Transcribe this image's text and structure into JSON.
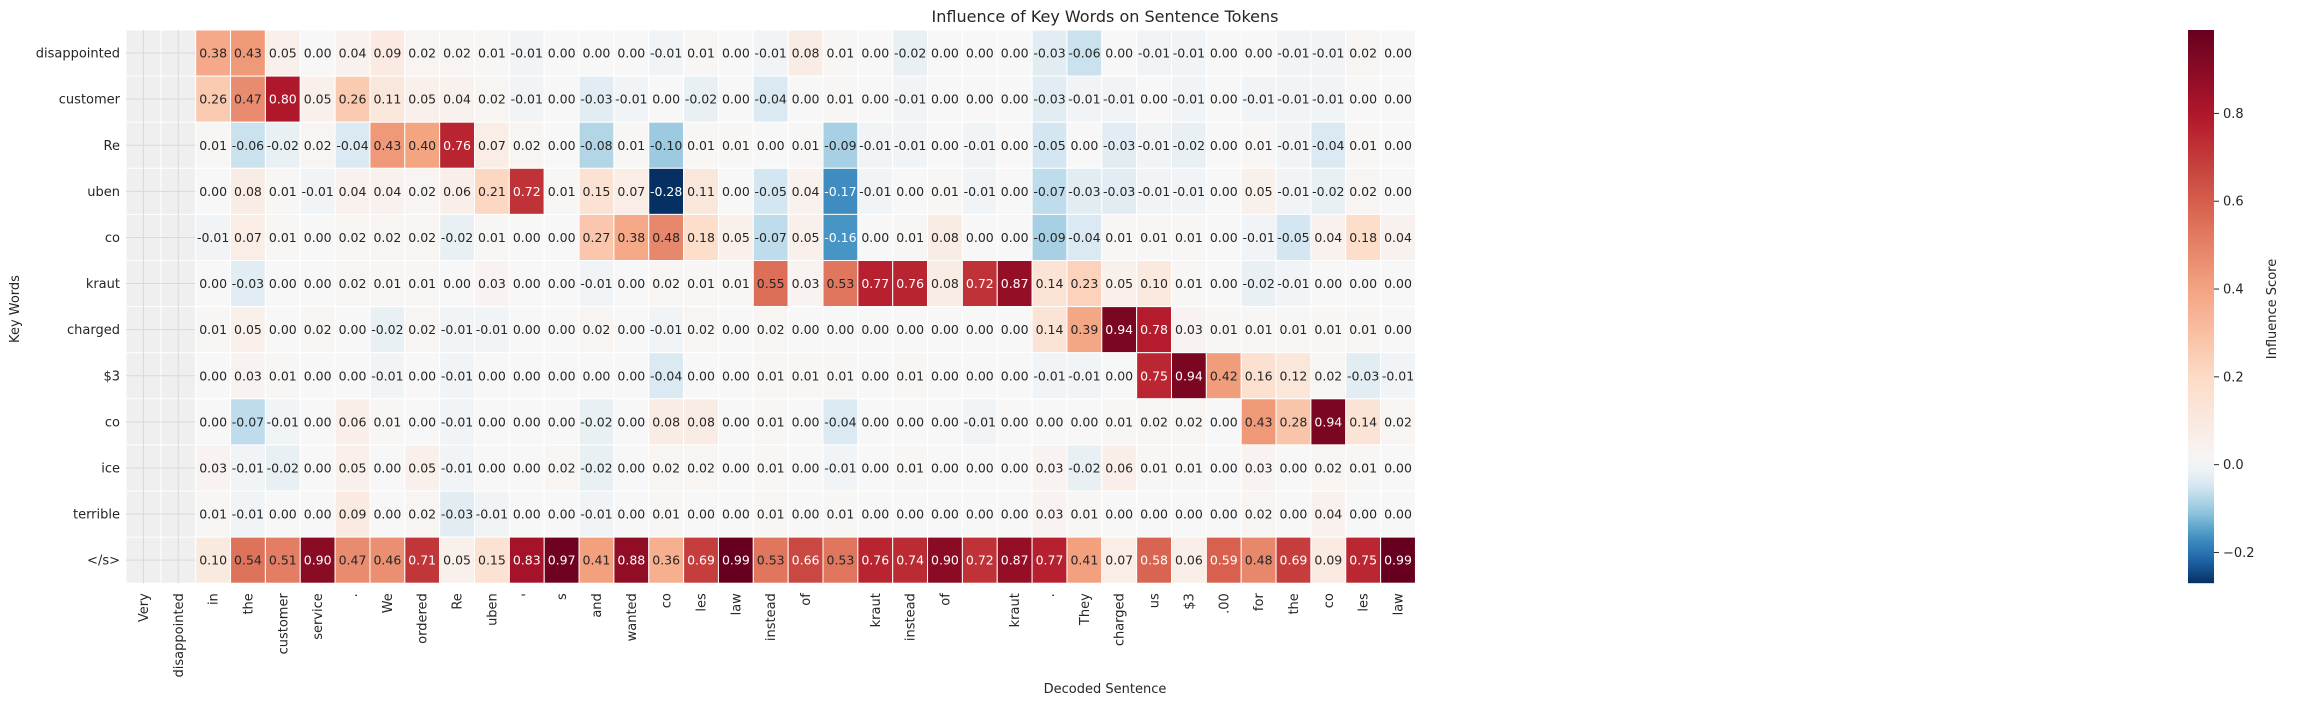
{
  "chart_data": {
    "type": "heatmap",
    "title": "Influence of Key Words on Sentence Tokens",
    "xlabel": "Decoded Sentence",
    "ylabel": "Key Words",
    "colorbar_label": "Influence Score",
    "colorbar_ticks": [
      "−0.2",
      "0.0",
      "0.2",
      "0.4",
      "0.6",
      "0.8"
    ],
    "colorbar_range": [
      -0.27,
      0.99
    ],
    "colormap": "RdBu_r",
    "colors": {
      "negative_max": "#2f6db0",
      "neutral": "#f7f7f7",
      "positive_max": "#67001f",
      "missing": "#efefef"
    },
    "rows": [
      "disappointed",
      "customer",
      "Re",
      "uben",
      "co",
      "kraut",
      "charged",
      "$3",
      "co",
      "ice",
      "terrible",
      "</s>"
    ],
    "columns": [
      "Very",
      "disappointed",
      "in",
      "the",
      "customer",
      "service",
      ".",
      "We",
      "ordered",
      "Re",
      "uben",
      "'",
      "s",
      "and",
      "wanted",
      "co",
      "les",
      "law",
      "instead",
      "of",
      "",
      "kraut",
      "instead",
      "of",
      "",
      "kraut",
      ".",
      "They",
      "charged",
      "us",
      "$3",
      ".00",
      "for",
      "the",
      "co",
      "les",
      "law"
    ],
    "values": [
      [
        null,
        null,
        0.38,
        0.43,
        0.05,
        -0.0,
        0.04,
        0.09,
        0.02,
        0.02,
        0.01,
        -0.01,
        -0.0,
        0.0,
        -0.0,
        -0.01,
        0.01,
        -0.0,
        -0.01,
        0.08,
        0.01,
        -0.0,
        -0.02,
        -0.0,
        -0.0,
        -0.0,
        -0.03,
        -0.06,
        0.0,
        -0.01,
        -0.01,
        0.0,
        0.0,
        -0.01,
        -0.01,
        0.02,
        0.0
      ],
      [
        null,
        null,
        0.26,
        0.47,
        0.8,
        0.05,
        0.26,
        0.11,
        0.05,
        0.04,
        0.02,
        -0.01,
        -0.0,
        -0.03,
        -0.01,
        0.0,
        -0.02,
        -0.0,
        -0.04,
        -0.0,
        0.01,
        -0.0,
        -0.01,
        -0.0,
        -0.0,
        -0.0,
        -0.03,
        -0.01,
        -0.01,
        -0.0,
        -0.01,
        0.0,
        -0.01,
        -0.01,
        -0.01,
        0.0,
        -0.0
      ],
      [
        null,
        null,
        0.01,
        -0.06,
        -0.02,
        0.02,
        -0.04,
        0.43,
        0.4,
        0.76,
        0.07,
        0.02,
        -0.0,
        -0.08,
        0.01,
        -0.1,
        0.01,
        0.01,
        -0.0,
        0.01,
        -0.09,
        -0.01,
        -0.01,
        0.0,
        -0.01,
        -0.0,
        -0.05,
        -0.0,
        -0.03,
        -0.01,
        -0.02,
        0.0,
        0.01,
        -0.01,
        -0.04,
        0.01,
        0.0
      ],
      [
        null,
        null,
        0.0,
        0.08,
        0.01,
        -0.01,
        0.04,
        0.04,
        0.02,
        0.06,
        0.21,
        0.72,
        0.01,
        0.15,
        0.07,
        -0.28,
        0.11,
        -0.0,
        -0.05,
        0.04,
        -0.17,
        -0.01,
        0.0,
        0.01,
        -0.01,
        -0.0,
        -0.07,
        -0.03,
        -0.03,
        -0.01,
        -0.01,
        -0.0,
        0.05,
        -0.01,
        -0.02,
        0.02,
        -0.0
      ],
      [
        null,
        null,
        -0.01,
        0.07,
        0.01,
        -0.0,
        0.02,
        0.02,
        0.02,
        -0.02,
        0.01,
        -0.0,
        -0.0,
        0.27,
        0.38,
        0.48,
        0.18,
        0.05,
        -0.07,
        0.05,
        -0.16,
        -0.0,
        0.01,
        0.08,
        0.0,
        0.0,
        -0.09,
        -0.04,
        0.01,
        0.01,
        0.01,
        -0.0,
        -0.01,
        -0.05,
        0.04,
        0.18,
        0.04
      ],
      [
        null,
        null,
        -0.0,
        -0.03,
        0.0,
        -0.0,
        0.02,
        0.01,
        0.01,
        0.0,
        0.03,
        -0.0,
        0.0,
        -0.01,
        -0.0,
        0.02,
        0.01,
        0.01,
        0.55,
        0.03,
        0.53,
        0.77,
        0.76,
        0.08,
        0.72,
        0.87,
        0.14,
        0.23,
        0.05,
        0.1,
        0.01,
        0.0,
        -0.02,
        -0.01,
        0.0,
        0.0,
        0.0
      ],
      [
        null,
        null,
        0.01,
        0.05,
        -0.0,
        0.02,
        -0.0,
        -0.02,
        0.02,
        -0.01,
        -0.01,
        0.0,
        0.0,
        0.02,
        0.0,
        -0.01,
        0.02,
        0.0,
        0.02,
        -0.0,
        0.0,
        -0.0,
        0.0,
        -0.0,
        -0.0,
        -0.0,
        0.14,
        0.39,
        0.94,
        0.78,
        0.03,
        0.01,
        0.01,
        0.01,
        0.01,
        0.01,
        -0.0
      ],
      [
        null,
        null,
        0.0,
        0.03,
        0.01,
        0.0,
        -0.0,
        -0.01,
        0.0,
        -0.01,
        0.0,
        -0.0,
        -0.0,
        -0.0,
        0.0,
        -0.04,
        0.0,
        -0.0,
        0.01,
        0.01,
        0.01,
        -0.0,
        0.01,
        0.0,
        0.0,
        -0.0,
        -0.01,
        -0.01,
        0.0,
        0.75,
        0.94,
        0.42,
        0.16,
        0.12,
        0.02,
        -0.03,
        -0.01
      ],
      [
        null,
        null,
        0.0,
        -0.07,
        -0.01,
        0.0,
        0.06,
        0.01,
        0.0,
        -0.01,
        -0.0,
        0.0,
        0.0,
        -0.02,
        -0.0,
        0.08,
        0.08,
        0.0,
        0.01,
        0.0,
        -0.04,
        -0.0,
        -0.0,
        -0.0,
        -0.01,
        -0.0,
        -0.0,
        -0.0,
        0.01,
        0.02,
        0.02,
        0.0,
        0.43,
        0.28,
        0.94,
        0.14,
        0.02
      ],
      [
        null,
        null,
        0.03,
        -0.01,
        -0.02,
        0.0,
        0.05,
        -0.0,
        0.05,
        -0.01,
        0.0,
        -0.0,
        0.02,
        -0.02,
        0.0,
        0.02,
        0.02,
        0.0,
        0.01,
        0.0,
        -0.01,
        0.0,
        0.01,
        0.0,
        0.0,
        -0.0,
        0.03,
        -0.02,
        0.06,
        0.01,
        0.01,
        -0.0,
        0.03,
        -0.0,
        0.02,
        0.01,
        0.0
      ],
      [
        null,
        null,
        0.01,
        -0.01,
        0.0,
        0.0,
        0.09,
        0.0,
        0.02,
        -0.03,
        -0.01,
        0.0,
        0.0,
        -0.01,
        0.0,
        0.01,
        0.0,
        0.0,
        0.01,
        -0.0,
        0.01,
        -0.0,
        0.0,
        -0.0,
        0.0,
        -0.0,
        0.03,
        0.01,
        0.0,
        0.0,
        0.0,
        -0.0,
        0.02,
        -0.0,
        0.04,
        0.0,
        -0.0
      ],
      [
        null,
        null,
        0.1,
        0.54,
        0.51,
        0.9,
        0.47,
        0.46,
        0.71,
        0.05,
        0.15,
        0.83,
        0.97,
        0.41,
        0.88,
        0.36,
        0.69,
        0.99,
        0.53,
        0.66,
        0.53,
        0.76,
        0.74,
        0.9,
        0.72,
        0.87,
        0.77,
        0.41,
        0.07,
        0.58,
        0.06,
        0.59,
        0.48,
        0.69,
        0.09,
        0.75,
        0.99
      ]
    ]
  }
}
